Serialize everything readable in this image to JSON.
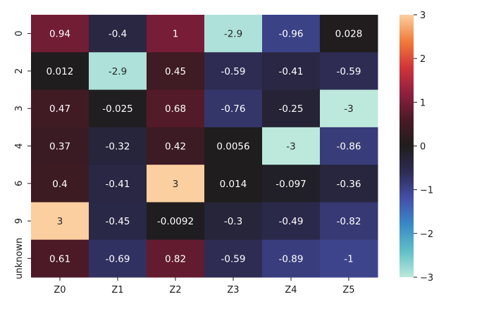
{
  "chart_data": {
    "type": "heatmap",
    "title": "",
    "xlabel": "",
    "ylabel": "",
    "x_categories": [
      "Z0",
      "Z1",
      "Z2",
      "Z3",
      "Z4",
      "Z5"
    ],
    "y_categories": [
      "0",
      "2",
      "3",
      "4",
      "6",
      "9",
      "unknown"
    ],
    "values": [
      [
        0.94,
        -0.4,
        1,
        -2.9,
        -0.96,
        0.028
      ],
      [
        0.012,
        -2.9,
        0.45,
        -0.59,
        -0.41,
        -0.59
      ],
      [
        0.47,
        -0.025,
        0.68,
        -0.76,
        -0.25,
        -3
      ],
      [
        0.37,
        -0.32,
        0.42,
        0.0056,
        -3,
        -0.86
      ],
      [
        0.4,
        -0.41,
        3,
        0.014,
        -0.097,
        -0.36
      ],
      [
        3,
        -0.45,
        -0.0092,
        -0.3,
        -0.49,
        -0.82
      ],
      [
        0.61,
        -0.69,
        0.82,
        -0.59,
        -0.89,
        -1
      ]
    ],
    "cell_labels": [
      [
        "0.94",
        "-0.4",
        "1",
        "-2.9",
        "-0.96",
        "0.028"
      ],
      [
        "0.012",
        "-2.9",
        "0.45",
        "-0.59",
        "-0.41",
        "-0.59"
      ],
      [
        "0.47",
        "-0.025",
        "0.68",
        "-0.76",
        "-0.25",
        "-3"
      ],
      [
        "0.37",
        "-0.32",
        "0.42",
        "0.0056",
        "-3",
        "-0.86"
      ],
      [
        "0.4",
        "-0.41",
        "3",
        "0.014",
        "-0.097",
        "-0.36"
      ],
      [
        "3",
        "-0.45",
        "-0.0092",
        "-0.3",
        "-0.49",
        "-0.82"
      ],
      [
        "0.61",
        "-0.69",
        "0.82",
        "-0.59",
        "-0.89",
        "-1"
      ]
    ],
    "colorbar": {
      "vmin": -3,
      "vmax": 3,
      "ticks": [
        3,
        2,
        1,
        0,
        -1,
        -2,
        -3
      ],
      "tick_labels": [
        "3",
        "2",
        "1",
        "0",
        "−1",
        "−2",
        "−3"
      ],
      "colormap": "icefire",
      "color_stops": [
        {
          "value": -3,
          "color": "#bde8dc"
        },
        {
          "value": -2.4,
          "color": "#5fbfc8"
        },
        {
          "value": -1.8,
          "color": "#3a89c7"
        },
        {
          "value": -1.2,
          "color": "#4450a8"
        },
        {
          "value": -0.6,
          "color": "#2e2c54"
        },
        {
          "value": 0,
          "color": "#1f1d1e"
        },
        {
          "value": 0.6,
          "color": "#4a1a26"
        },
        {
          "value": 1.2,
          "color": "#8e1f3f"
        },
        {
          "value": 1.8,
          "color": "#d1353a"
        },
        {
          "value": 2.4,
          "color": "#f17c3a"
        },
        {
          "value": 3,
          "color": "#fbcf9f"
        }
      ]
    },
    "grid": false,
    "legend": "colorbar-right"
  }
}
